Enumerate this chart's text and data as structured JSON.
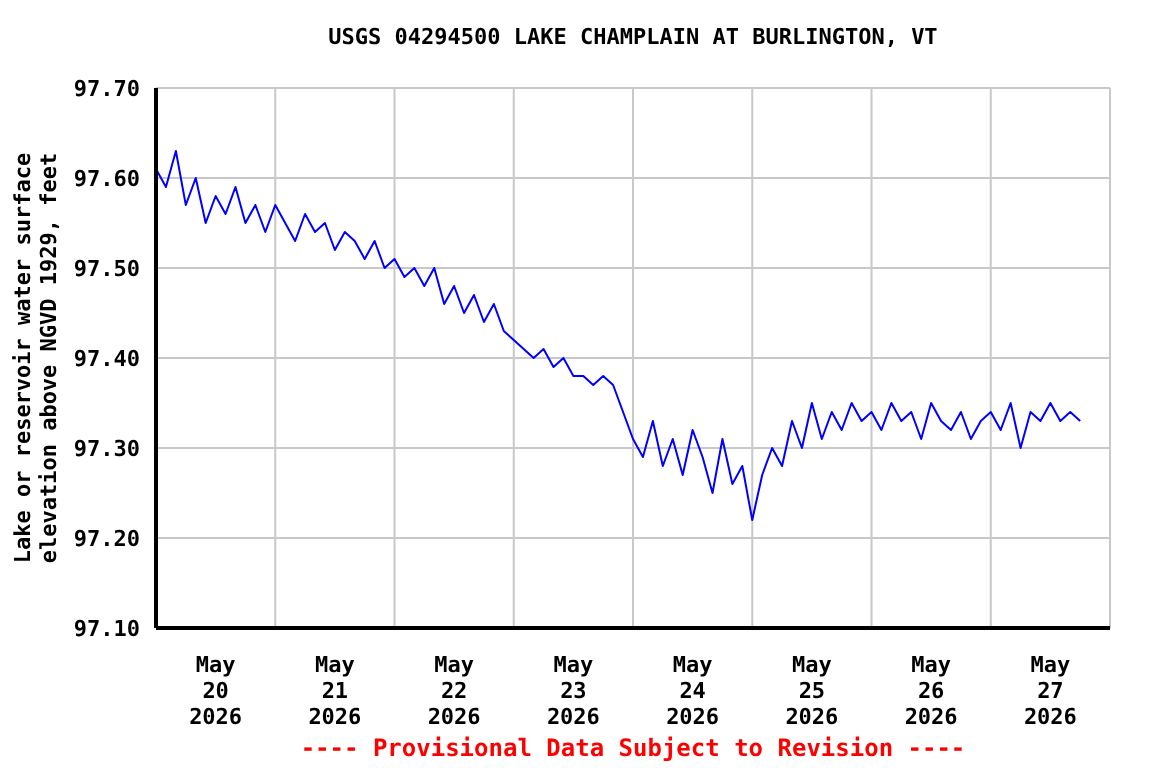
{
  "chart_data": {
    "type": "line",
    "title": "USGS 04294500 LAKE CHAMPLAIN AT BURLINGTON, VT",
    "ylabel": "Lake or reservoir water surface\nelevation above NGVD 1929, feet",
    "annotations": [
      "---- Provisional Data Subject to Revision ----"
    ],
    "xlim": [
      "2026-05-20T00:00",
      "2026-05-28T00:00"
    ],
    "xticks": [
      {
        "value": "2026-05-20T00:00",
        "label": null
      },
      {
        "value": "2026-05-20T12:00",
        "label": "May\n20\n2026"
      },
      {
        "value": "2026-05-21T00:00",
        "label": null
      },
      {
        "value": "2026-05-21T12:00",
        "label": "May\n21\n2026"
      },
      {
        "value": "2026-05-22T00:00",
        "label": null
      },
      {
        "value": "2026-05-22T12:00",
        "label": "May\n22\n2026"
      },
      {
        "value": "2026-05-23T00:00",
        "label": null
      },
      {
        "value": "2026-05-23T12:00",
        "label": "May\n23\n2026"
      },
      {
        "value": "2026-05-24T00:00",
        "label": null
      },
      {
        "value": "2026-05-24T12:00",
        "label": "May\n24\n2026"
      },
      {
        "value": "2026-05-25T00:00",
        "label": null
      },
      {
        "value": "2026-05-25T12:00",
        "label": "May\n25\n2026"
      },
      {
        "value": "2026-05-26T00:00",
        "label": null
      },
      {
        "value": "2026-05-26T12:00",
        "label": "May\n26\n2026"
      },
      {
        "value": "2026-05-27T00:00",
        "label": null
      },
      {
        "value": "2026-05-27T12:00",
        "label": "May\n27\n2026"
      },
      {
        "value": "2026-05-28T00:00",
        "label": null
      }
    ],
    "ylim": [
      97.1,
      97.7
    ],
    "yticks": [
      {
        "value": 97.1,
        "label": "97.10"
      },
      {
        "value": 97.2,
        "label": "97.20"
      },
      {
        "value": 97.3,
        "label": "97.30"
      },
      {
        "value": 97.4,
        "label": "97.40"
      },
      {
        "value": 97.5,
        "label": "97.50"
      },
      {
        "value": 97.6,
        "label": "97.60"
      },
      {
        "value": 97.7,
        "label": "97.70"
      }
    ],
    "grid": true,
    "marker": "none",
    "line_style": "solid",
    "x": [
      "2026-05-20T00:00",
      "2026-05-20T02:00",
      "2026-05-20T04:00",
      "2026-05-20T06:00",
      "2026-05-20T08:00",
      "2026-05-20T10:00",
      "2026-05-20T12:00",
      "2026-05-20T14:00",
      "2026-05-20T16:00",
      "2026-05-20T18:00",
      "2026-05-20T20:00",
      "2026-05-20T22:00",
      "2026-05-21T00:00",
      "2026-05-21T02:00",
      "2026-05-21T04:00",
      "2026-05-21T06:00",
      "2026-05-21T08:00",
      "2026-05-21T10:00",
      "2026-05-21T12:00",
      "2026-05-21T14:00",
      "2026-05-21T16:00",
      "2026-05-21T18:00",
      "2026-05-21T20:00",
      "2026-05-21T22:00",
      "2026-05-22T00:00",
      "2026-05-22T02:00",
      "2026-05-22T04:00",
      "2026-05-22T06:00",
      "2026-05-22T08:00",
      "2026-05-22T10:00",
      "2026-05-22T12:00",
      "2026-05-22T14:00",
      "2026-05-22T16:00",
      "2026-05-22T18:00",
      "2026-05-22T20:00",
      "2026-05-22T22:00",
      "2026-05-23T00:00",
      "2026-05-23T02:00",
      "2026-05-23T04:00",
      "2026-05-23T06:00",
      "2026-05-23T08:00",
      "2026-05-23T10:00",
      "2026-05-23T12:00",
      "2026-05-23T14:00",
      "2026-05-23T16:00",
      "2026-05-23T18:00",
      "2026-05-23T20:00",
      "2026-05-23T22:00",
      "2026-05-24T00:00",
      "2026-05-24T02:00",
      "2026-05-24T04:00",
      "2026-05-24T06:00",
      "2026-05-24T08:00",
      "2026-05-24T10:00",
      "2026-05-24T12:00",
      "2026-05-24T14:00",
      "2026-05-24T16:00",
      "2026-05-24T18:00",
      "2026-05-24T20:00",
      "2026-05-24T22:00",
      "2026-05-25T00:00",
      "2026-05-25T02:00",
      "2026-05-25T04:00",
      "2026-05-25T06:00",
      "2026-05-25T08:00",
      "2026-05-25T10:00",
      "2026-05-25T12:00",
      "2026-05-25T14:00",
      "2026-05-25T16:00",
      "2026-05-25T18:00",
      "2026-05-25T20:00",
      "2026-05-25T22:00",
      "2026-05-26T00:00",
      "2026-05-26T02:00",
      "2026-05-26T04:00",
      "2026-05-26T06:00",
      "2026-05-26T08:00",
      "2026-05-26T10:00",
      "2026-05-26T12:00",
      "2026-05-26T14:00",
      "2026-05-26T16:00",
      "2026-05-26T18:00",
      "2026-05-26T20:00",
      "2026-05-26T22:00",
      "2026-05-27T00:00",
      "2026-05-27T02:00",
      "2026-05-27T04:00",
      "2026-05-27T06:00",
      "2026-05-27T08:00",
      "2026-05-27T10:00",
      "2026-05-27T12:00",
      "2026-05-27T14:00",
      "2026-05-27T16:00",
      "2026-05-27T18:00"
    ],
    "series": [
      {
        "color": "#0000ff",
        "values": [
          97.61,
          97.59,
          97.63,
          97.57,
          97.6,
          97.55,
          97.58,
          97.56,
          97.59,
          97.55,
          97.57,
          97.54,
          97.57,
          97.55,
          97.53,
          97.56,
          97.54,
          97.55,
          97.52,
          97.54,
          97.53,
          97.51,
          97.53,
          97.5,
          97.51,
          97.49,
          97.5,
          97.48,
          97.5,
          97.46,
          97.48,
          97.45,
          97.47,
          97.44,
          97.46,
          97.43,
          97.42,
          97.41,
          97.4,
          97.41,
          97.39,
          97.4,
          97.38,
          97.38,
          97.37,
          97.38,
          97.37,
          97.34,
          97.31,
          97.29,
          97.33,
          97.28,
          97.31,
          97.27,
          97.32,
          97.29,
          97.25,
          97.31,
          97.26,
          97.28,
          97.22,
          97.27,
          97.3,
          97.28,
          97.33,
          97.3,
          97.35,
          97.31,
          97.34,
          97.32,
          97.35,
          97.33,
          97.34,
          97.32,
          97.35,
          97.33,
          97.34,
          97.31,
          97.35,
          97.33,
          97.32,
          97.34,
          97.31,
          97.33,
          97.34,
          97.32,
          97.35,
          97.3,
          97.34,
          97.33,
          97.35,
          97.33,
          97.34,
          97.33
        ]
      }
    ]
  }
}
